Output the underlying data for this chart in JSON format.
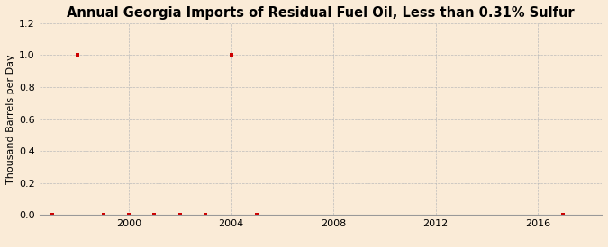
{
  "title": "Annual Georgia Imports of Residual Fuel Oil, Less than 0.31% Sulfur",
  "ylabel": "Thousand Barrels per Day",
  "background_color": "#faebd7",
  "plot_bg_color": "#faebd7",
  "years": [
    1997,
    1998,
    1999,
    2000,
    2001,
    2002,
    2003,
    2004,
    2005,
    2017
  ],
  "values": [
    0,
    1.0,
    0,
    0,
    0,
    0,
    0,
    1.0,
    0,
    0
  ],
  "marker_color": "#cc0000",
  "grid_color": "#bbbbbb",
  "xlim": [
    1996.5,
    2018.5
  ],
  "ylim": [
    0,
    1.2
  ],
  "yticks": [
    0.0,
    0.2,
    0.4,
    0.6,
    0.8,
    1.0,
    1.2
  ],
  "xticks": [
    2000,
    2004,
    2008,
    2012,
    2016
  ],
  "title_fontsize": 10.5,
  "ylabel_fontsize": 8,
  "source_fontsize": 7.5,
  "tick_fontsize": 8
}
